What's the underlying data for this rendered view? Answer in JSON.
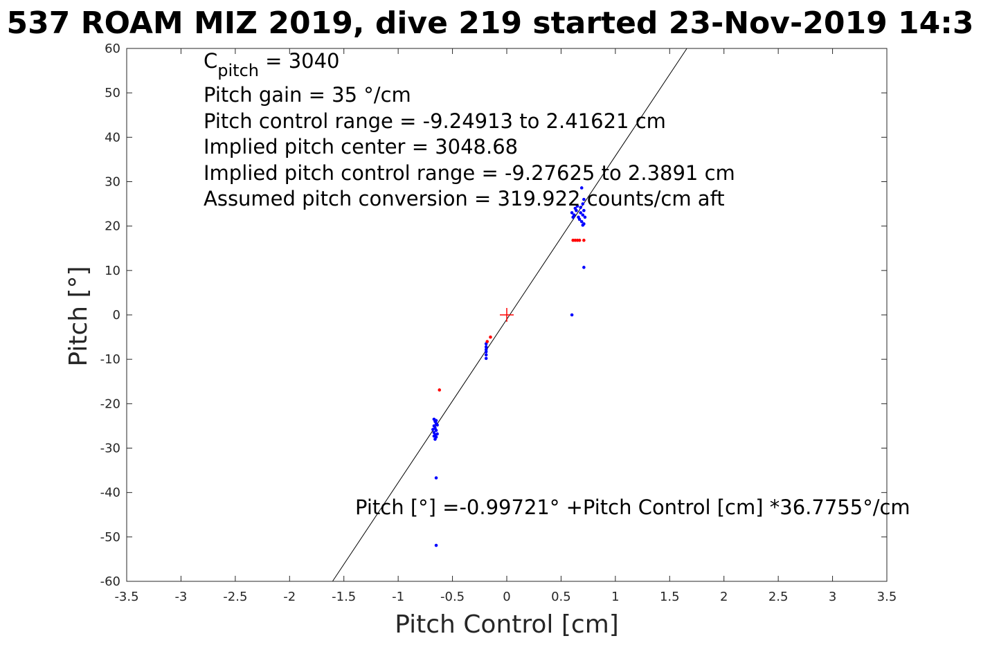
{
  "chart_data": {
    "type": "scatter",
    "title": "537 ROAM MIZ 2019, dive 219 started 23-Nov-2019 14:3",
    "xlabel": "Pitch Control [cm]",
    "ylabel": "Pitch [°]",
    "xlim": [
      -3.5,
      3.5
    ],
    "ylim": [
      -60,
      60
    ],
    "x_ticks": [
      -3.5,
      -3,
      -2.5,
      -2,
      -1.5,
      -1,
      -0.5,
      0,
      0.5,
      1,
      1.5,
      2,
      2.5,
      3,
      3.5
    ],
    "x_tick_labels": [
      "-3.5",
      "-3",
      "-2.5",
      "-2",
      "-1.5",
      "-1",
      "-0.5",
      "0",
      "0.5",
      "1",
      "1.5",
      "2",
      "2.5",
      "3",
      "3.5"
    ],
    "y_ticks": [
      60,
      50,
      40,
      30,
      20,
      10,
      0,
      -10,
      -20,
      -30,
      -40,
      -50,
      -60
    ],
    "y_tick_labels": [
      "60",
      "50",
      "40",
      "30",
      "20",
      "10",
      "0",
      "-10",
      "-20",
      "-30",
      "-40",
      "-50",
      "-60"
    ],
    "grid": true,
    "legend": null,
    "colors": {
      "series_blue": "#0000ff",
      "series_red": "#ff0000",
      "fit_line": "#000000",
      "grid": "#e5e5e5"
    },
    "series": [
      {
        "color": "#0000ff",
        "points": [
          [
            -0.66,
            -24.0
          ],
          [
            -0.65,
            -24.5
          ],
          [
            -0.67,
            -25.0
          ],
          [
            -0.66,
            -25.5
          ],
          [
            -0.65,
            -26.0
          ],
          [
            -0.67,
            -26.5
          ],
          [
            -0.66,
            -27.0
          ],
          [
            -0.65,
            -27.5
          ],
          [
            -0.66,
            -28.0
          ],
          [
            -0.67,
            -23.5
          ],
          [
            -0.64,
            -24.8
          ],
          [
            -0.68,
            -25.8
          ],
          [
            -0.64,
            -26.8
          ],
          [
            -0.65,
            -23.8
          ],
          [
            -0.67,
            -27.3
          ],
          [
            -0.65,
            -36.7
          ],
          [
            -0.65,
            -51.9
          ],
          [
            -0.19,
            -6.5
          ],
          [
            -0.19,
            -7.2
          ],
          [
            -0.19,
            -7.8
          ],
          [
            -0.19,
            -8.3
          ],
          [
            -0.19,
            -9.0
          ],
          [
            -0.19,
            -9.8
          ],
          [
            0.6,
            0.0
          ],
          [
            0.69,
            28.6
          ],
          [
            0.71,
            26.0
          ],
          [
            0.7,
            25.0
          ],
          [
            0.68,
            24.2
          ],
          [
            0.6,
            23.0
          ],
          [
            0.62,
            22.5
          ],
          [
            0.64,
            23.5
          ],
          [
            0.66,
            22.0
          ],
          [
            0.68,
            23.0
          ],
          [
            0.7,
            22.5
          ],
          [
            0.61,
            22.0
          ],
          [
            0.63,
            24.0
          ],
          [
            0.65,
            24.5
          ],
          [
            0.67,
            21.5
          ],
          [
            0.69,
            21.0
          ],
          [
            0.71,
            23.5
          ],
          [
            0.72,
            22.0
          ],
          [
            0.71,
            20.5
          ],
          [
            0.7,
            20.2
          ],
          [
            0.71,
            10.7
          ]
        ]
      },
      {
        "color": "#ff0000",
        "points": [
          [
            -0.62,
            -16.9
          ],
          [
            -0.15,
            -5.0
          ],
          [
            -0.18,
            -6.0
          ],
          [
            0.61,
            16.8
          ],
          [
            0.63,
            16.8
          ],
          [
            0.65,
            16.8
          ],
          [
            0.67,
            16.8
          ],
          [
            0.71,
            16.8
          ]
        ]
      }
    ],
    "center_marker": {
      "x": 0,
      "y": 0,
      "color": "#ff0000",
      "shape": "plus"
    },
    "fit_line": {
      "intercept": -0.99721,
      "slope": 36.7755
    },
    "annotations": {
      "c_pitch_main": "C",
      "c_pitch_sub": "pitch",
      "c_pitch_value": " = 3040",
      "pitch_gain": "Pitch gain = 35 °/cm",
      "pitch_control_range": "Pitch control range = -9.24913 to 2.41621 cm",
      "implied_pitch_center": "Implied pitch center = 3048.68",
      "implied_pitch_control_range": "Implied pitch control range = -9.27625 to 2.3891 cm",
      "assumed_pitch_conversion": "Assumed pitch conversion = 319.922 counts/cm aft",
      "fit_equation": "Pitch [°] =-0.99721° +Pitch Control [cm] *36.7755°/cm"
    }
  }
}
